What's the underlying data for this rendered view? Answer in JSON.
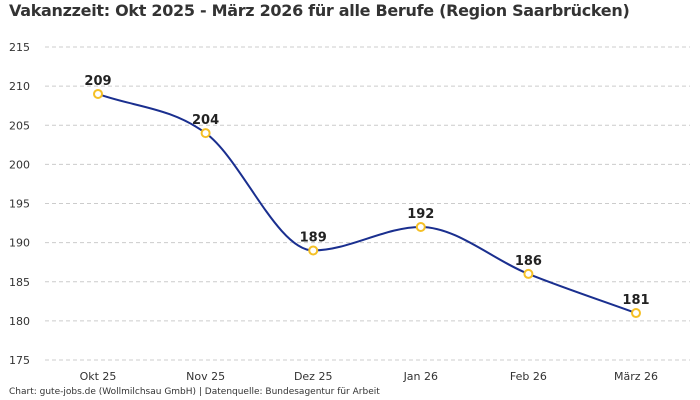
{
  "chart_data": {
    "type": "line",
    "title": "Vakanzzeit: Okt 2025 - März 2026 für alle Berufe (Region Saarbrücken)",
    "categories": [
      "Okt 25",
      "Nov 25",
      "Dez 25",
      "Jan 26",
      "Feb 26",
      "März 26"
    ],
    "values": [
      209,
      204,
      189,
      192,
      186,
      181
    ],
    "data_labels": [
      "209",
      "204",
      "189",
      "192",
      "186",
      "181"
    ],
    "xlabel": "",
    "ylabel": "",
    "ylim": [
      175,
      215
    ],
    "yticks": [
      175,
      180,
      185,
      190,
      195,
      200,
      205,
      210,
      215
    ],
    "grid": true,
    "smooth": true,
    "colors": {
      "line": "#1a2f8f",
      "marker": "#f5c026",
      "grid": "#cccccc"
    },
    "footer": "Chart: gute-jobs.de (Wollmilchsau GmbH) | Datenquelle: Bundesagentur für Arbeit"
  }
}
